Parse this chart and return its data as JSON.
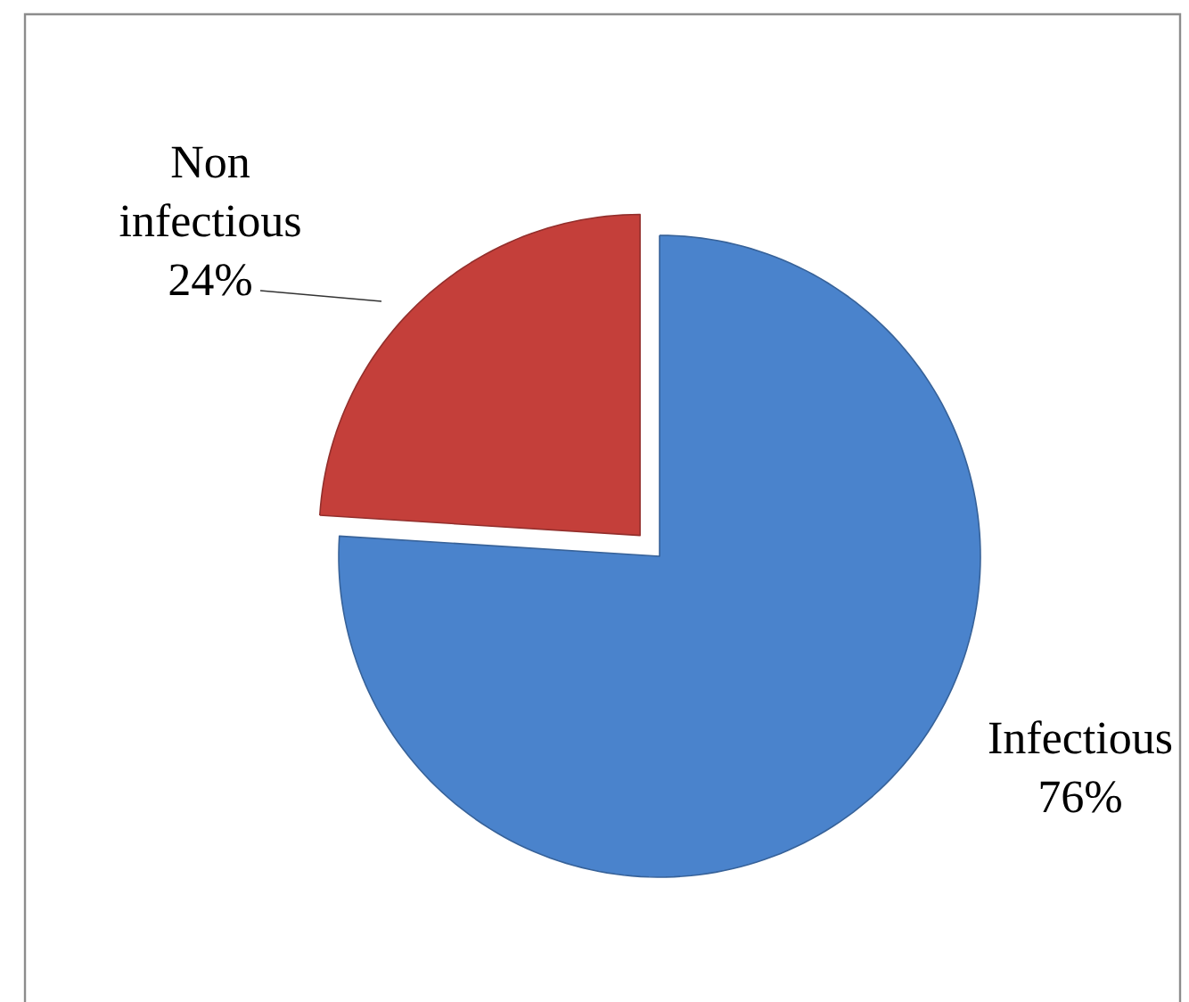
{
  "chart_data": {
    "type": "pie",
    "categories": [
      "Infectious",
      "Non infectious"
    ],
    "values": [
      76,
      24
    ],
    "colors": [
      "#4a83cc",
      "#c43f3a"
    ],
    "value_labels": [
      "76%",
      "24%"
    ]
  }
}
